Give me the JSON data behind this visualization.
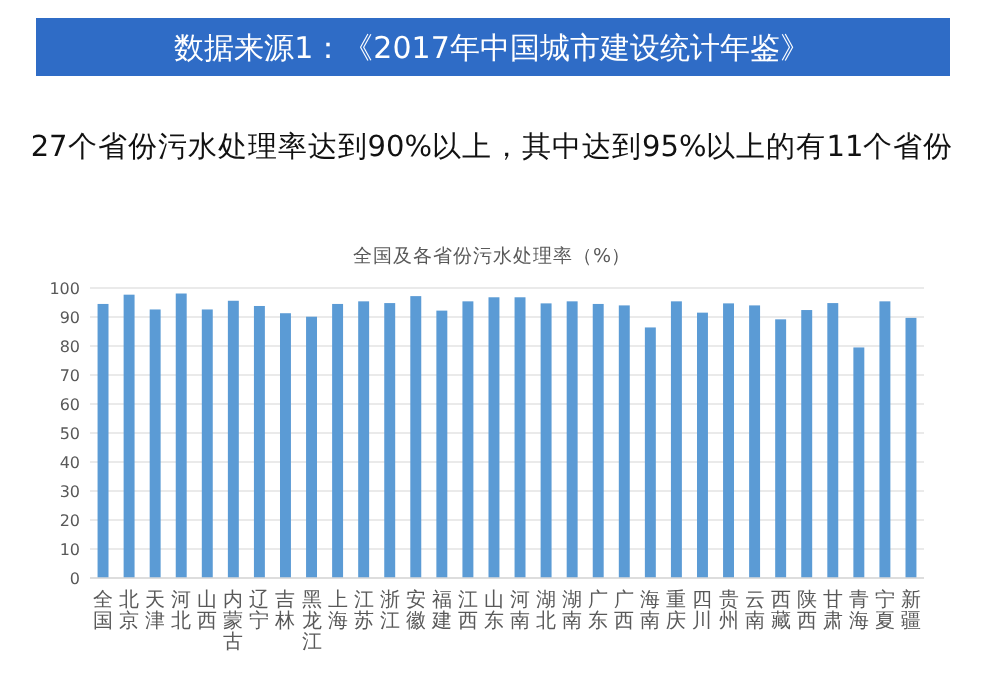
{
  "chart_data": {
    "type": "bar",
    "title": "全国及各省份污水处理率（%）",
    "annotations": [
      "数据来源1：《2017年中国城市建设统计年鉴》",
      "27个省份污水处理率达到90%以上，其中达到95%以上的有11个省份"
    ],
    "categories": [
      "全国",
      "北京",
      "天津",
      "河北",
      "山西",
      "内蒙古",
      "辽宁",
      "吉林",
      "黑龙江",
      "上海",
      "江苏",
      "浙江",
      "安徽",
      "福建",
      "江西",
      "山东",
      "河南",
      "湖北",
      "湖南",
      "广东",
      "广西",
      "海南",
      "重庆",
      "四川",
      "贵州",
      "云南",
      "西藏",
      "陕西",
      "甘肃",
      "青海",
      "宁夏",
      "新疆"
    ],
    "values": [
      94.5,
      97.7,
      92.6,
      98.1,
      92.6,
      95.6,
      93.8,
      91.3,
      90.1,
      94.5,
      95.4,
      94.8,
      97.2,
      92.2,
      95.4,
      96.8,
      96.8,
      94.7,
      95.4,
      94.5,
      94.0,
      86.4,
      95.4,
      91.5,
      94.7,
      94.0,
      89.2,
      92.4,
      94.8,
      79.5,
      95.4,
      89.7
    ],
    "color": "#5b9bd5",
    "ylim": [
      0,
      100
    ],
    "yticks": [
      0,
      10,
      20,
      30,
      40,
      50,
      60,
      70,
      80,
      90,
      100
    ],
    "grid": "y"
  }
}
